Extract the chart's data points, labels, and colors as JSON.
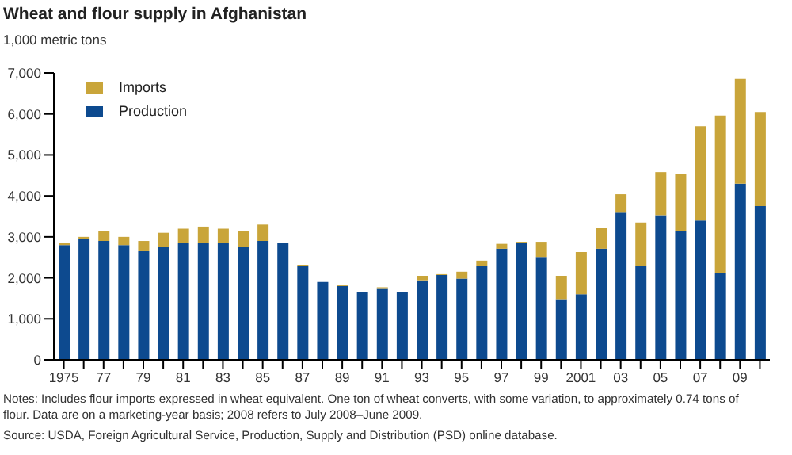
{
  "chart_data": {
    "type": "bar",
    "title": "Wheat and flour supply in Afghanistan",
    "ylabel": "1,000 metric tons",
    "categories": [
      "1975",
      null,
      "77",
      null,
      "79",
      null,
      "81",
      null,
      "83",
      null,
      "85",
      null,
      "87",
      null,
      "89",
      null,
      "91",
      null,
      "93",
      null,
      "95",
      null,
      "97",
      null,
      "99",
      null,
      "2001",
      null,
      "03",
      null,
      "05",
      null,
      "07",
      null,
      "09",
      null
    ],
    "stacked": true,
    "series": [
      {
        "name": "Production",
        "color": "#0d4a8f",
        "values": [
          2800,
          2950,
          2900,
          2800,
          2650,
          2750,
          2850,
          2850,
          2850,
          2750,
          2900,
          2850,
          2300,
          1900,
          1800,
          1650,
          1750,
          1650,
          1940,
          2070,
          1980,
          2300,
          2710,
          2850,
          2510,
          1480,
          1600,
          2710,
          3590,
          2300,
          3530,
          3140,
          3400,
          2110,
          4300,
          3750
        ]
      },
      {
        "name": "Imports",
        "color": "#c9a53a",
        "values": [
          50,
          50,
          250,
          200,
          250,
          350,
          350,
          400,
          350,
          400,
          400,
          0,
          20,
          0,
          20,
          0,
          20,
          0,
          110,
          20,
          170,
          120,
          120,
          30,
          370,
          570,
          1030,
          500,
          450,
          1050,
          1050,
          1400,
          2300,
          3850,
          2550,
          2300
        ]
      }
    ],
    "ylim": [
      0,
      7000
    ],
    "yticks": [
      {
        "value": 0,
        "label": "0"
      },
      {
        "value": 1000,
        "label": "1,000"
      },
      {
        "value": 2000,
        "label": "2,000"
      },
      {
        "value": 3000,
        "label": "3,000"
      },
      {
        "value": 4000,
        "label": "4,000"
      },
      {
        "value": 5000,
        "label": "5,000"
      },
      {
        "value": 6000,
        "label": "6,000"
      },
      {
        "value": 7000,
        "label": "7,000"
      }
    ],
    "grid": false,
    "legend": "top left",
    "annotations": [
      "Notes: Includes flour imports expressed in wheat equivalent.  One ton of wheat converts, with some variation, to approximately 0.74 tons of flour.  Data are on a marketing-year basis; 2008 refers to July 2008–June 2009.",
      "Source: USDA, Foreign Agricultural Service, Production, Supply and Distribution (PSD) online database."
    ]
  }
}
